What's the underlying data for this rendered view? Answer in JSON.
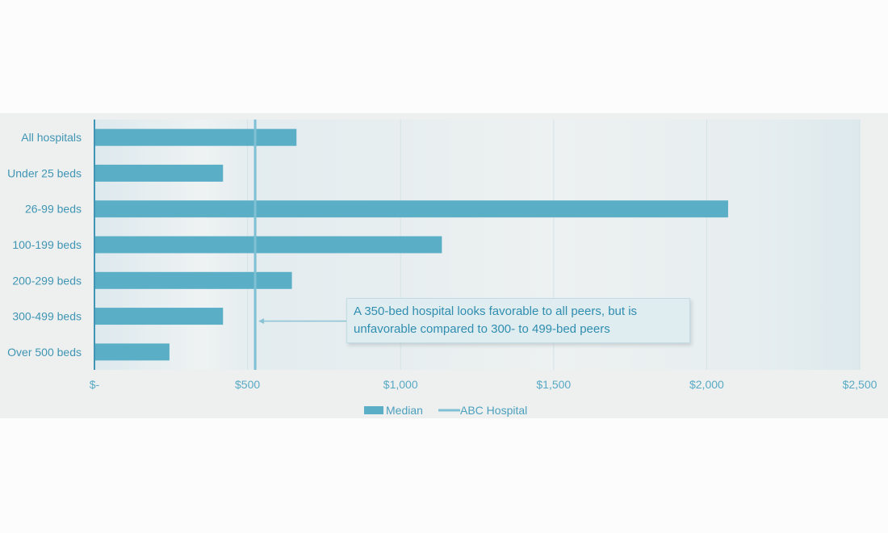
{
  "chart_data": {
    "type": "bar",
    "orientation": "horizontal",
    "categories": [
      "All hospitals",
      "Under 25 beds",
      "26-99 beds",
      "100-199 beds",
      "200-299 beds",
      "300-499 beds",
      "Over 500 beds"
    ],
    "series": [
      {
        "name": "Median",
        "values": [
          660,
          420,
          2070,
          1135,
          645,
          420,
          245
        ]
      }
    ],
    "reference_line": {
      "name": "ABC Hospital",
      "value": 525
    },
    "xlim": [
      0,
      2500
    ],
    "xticks": [
      0,
      500,
      1000,
      1500,
      2000,
      2500
    ],
    "xtick_labels": [
      "$-",
      "$500",
      "$1,000",
      "$1,500",
      "$2,000",
      "$2,500"
    ],
    "annotation": "A 350-bed hospital looks favorable to all peers, but is unfavorable compared to 300- to 499-bed peers",
    "annotation_target": "300-499 beds",
    "legend": {
      "position": "bottom",
      "entries": [
        "Median",
        "ABC Hospital"
      ]
    },
    "grid": {
      "vertical": true,
      "horizontal": false
    },
    "colors": {
      "bar": "#5aaec6",
      "reference_line": "#7ec0d4",
      "gridline": "#d3e3e8",
      "text": "#3f95b3"
    }
  }
}
